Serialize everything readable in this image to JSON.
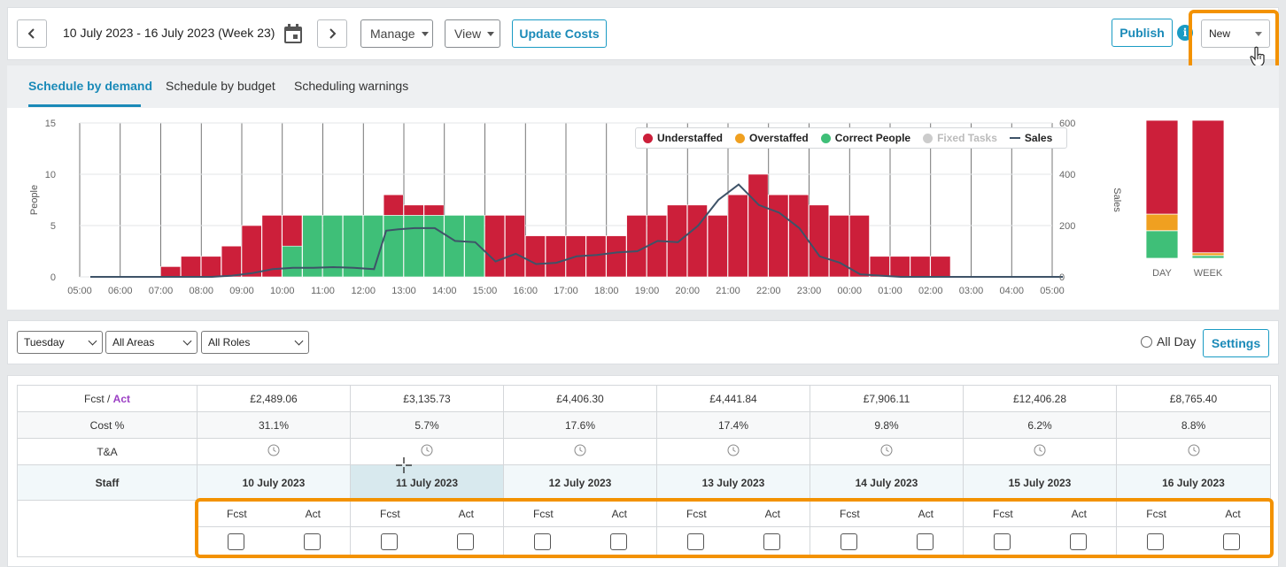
{
  "toolbar": {
    "date_range": "10 July 2023 - 16 July 2023 (Week 23)",
    "manage_label": "Manage",
    "view_label": "View",
    "update_costs_label": "Update Costs",
    "publish_label": "Publish",
    "info_glyph": "i",
    "template_select_value": "New",
    "prev_icon": "chevron-left-icon",
    "next_icon": "chevron-right-icon",
    "calendar_icon": "calendar-icon"
  },
  "tabs": [
    {
      "label": "Schedule by demand",
      "active": true
    },
    {
      "label": "Schedule by budget",
      "active": false
    },
    {
      "label": "Scheduling warnings",
      "active": false
    }
  ],
  "chart_data": [
    {
      "type": "bar",
      "stacked": true,
      "ylabel": "People",
      "y2label": "Sales",
      "ylim": [
        0,
        15
      ],
      "yticks": [
        "15",
        "10",
        "5",
        "0"
      ],
      "y2lim": [
        0,
        600
      ],
      "y2ticks": [
        "600",
        "400",
        "200",
        "0"
      ],
      "xticks": [
        "05:00",
        "06:00",
        "07:00",
        "08:00",
        "09:00",
        "10:00",
        "11:00",
        "12:00",
        "13:00",
        "14:00",
        "15:00",
        "16:00",
        "17:00",
        "18:00",
        "19:00",
        "20:00",
        "21:00",
        "22:00",
        "23:00",
        "00:00",
        "01:00",
        "02:00",
        "03:00",
        "04:00",
        "05:00"
      ],
      "legend": [
        {
          "name": "Understaffed",
          "color": "#cc1f3a"
        },
        {
          "name": "Overstaffed",
          "color": "#f0a020"
        },
        {
          "name": "Correct People",
          "color": "#3fbf78"
        },
        {
          "name": "Fixed Tasks",
          "color": "#cccccc",
          "muted": true
        },
        {
          "name": "Sales",
          "color": "#3e5368",
          "line": true
        }
      ],
      "legend_position": "top-right",
      "grid": true,
      "bar_slot_start_hour": 2,
      "bars": [
        {
          "red": 1,
          "green": 0
        },
        {
          "red": 2,
          "green": 0
        },
        {
          "red": 2,
          "green": 0
        },
        {
          "red": 3,
          "green": 0
        },
        {
          "red": 5,
          "green": 0
        },
        {
          "red": 6,
          "green": 0
        },
        {
          "red": 3,
          "green": 3
        },
        {
          "red": 0,
          "green": 6
        },
        {
          "red": 0,
          "green": 6
        },
        {
          "red": 0,
          "green": 6
        },
        {
          "red": 0,
          "green": 6
        },
        {
          "red": 2,
          "green": 6
        },
        {
          "red": 1,
          "green": 6
        },
        {
          "red": 1,
          "green": 6
        },
        {
          "red": 0,
          "green": 6
        },
        {
          "red": 0,
          "green": 6
        },
        {
          "red": 6,
          "green": 0
        },
        {
          "red": 6,
          "green": 0
        },
        {
          "red": 4,
          "green": 0
        },
        {
          "red": 4,
          "green": 0
        },
        {
          "red": 4,
          "green": 0
        },
        {
          "red": 4,
          "green": 0
        },
        {
          "red": 4,
          "green": 0
        },
        {
          "red": 6,
          "green": 0
        },
        {
          "red": 6,
          "green": 0
        },
        {
          "red": 7,
          "green": 0
        },
        {
          "red": 7,
          "green": 0
        },
        {
          "red": 6,
          "green": 0
        },
        {
          "red": 8,
          "green": 0
        },
        {
          "red": 10,
          "green": 0
        },
        {
          "red": 8,
          "green": 0
        },
        {
          "red": 8,
          "green": 0
        },
        {
          "red": 7,
          "green": 0
        },
        {
          "red": 6,
          "green": 0
        },
        {
          "red": 6,
          "green": 0
        },
        {
          "red": 2,
          "green": 0
        },
        {
          "red": 2,
          "green": 0
        },
        {
          "red": 2,
          "green": 0
        },
        {
          "red": 2,
          "green": 0
        },
        {
          "red": 0,
          "green": 0
        }
      ],
      "sales": [
        [
          0,
          0
        ],
        [
          1,
          0
        ],
        [
          2,
          0
        ],
        [
          3,
          0
        ],
        [
          3.5,
          5
        ],
        [
          4,
          15
        ],
        [
          4.5,
          30
        ],
        [
          5,
          35
        ],
        [
          5.5,
          35
        ],
        [
          6,
          38
        ],
        [
          6.5,
          35
        ],
        [
          7,
          30
        ],
        [
          7.3,
          180
        ],
        [
          7.6,
          185
        ],
        [
          8,
          190
        ],
        [
          8.5,
          190
        ],
        [
          9,
          140
        ],
        [
          9.5,
          135
        ],
        [
          10,
          60
        ],
        [
          10.5,
          90
        ],
        [
          11,
          50
        ],
        [
          11.5,
          55
        ],
        [
          12,
          80
        ],
        [
          12.5,
          85
        ],
        [
          13,
          95
        ],
        [
          13.5,
          100
        ],
        [
          14,
          140
        ],
        [
          14.5,
          135
        ],
        [
          15,
          200
        ],
        [
          15.5,
          300
        ],
        [
          16,
          360
        ],
        [
          16.5,
          280
        ],
        [
          17,
          250
        ],
        [
          17.5,
          190
        ],
        [
          18,
          80
        ],
        [
          18.5,
          55
        ],
        [
          19,
          10
        ],
        [
          19.5,
          5
        ],
        [
          20,
          0
        ],
        [
          21,
          0
        ],
        [
          22,
          0
        ],
        [
          23,
          0
        ],
        [
          24,
          0
        ]
      ]
    },
    {
      "type": "bar",
      "stacked": true,
      "categories": [
        "DAY",
        "WEEK"
      ],
      "ylim": [
        0,
        1
      ],
      "series": [
        {
          "name": "Understaffed",
          "color": "#cc1f3a",
          "values": [
            0.68,
            0.96
          ]
        },
        {
          "name": "Overstaffed",
          "color": "#f0a020",
          "values": [
            0.12,
            0.02
          ]
        },
        {
          "name": "Correct People",
          "color": "#3fbf78",
          "values": [
            0.2,
            0.02
          ]
        }
      ]
    }
  ],
  "filters": {
    "day": "Tuesday",
    "areas": "All Areas",
    "roles": "All Roles",
    "all_day_label": "All Day",
    "settings_label": "Settings"
  },
  "table": {
    "fcst_label": "Fcst / ",
    "act_label": "Act",
    "cost_pct_label": "Cost %",
    "ta_label": "T&A",
    "staff_label": "Staff",
    "sub_fcst": "Fcst",
    "sub_act": "Act",
    "days": [
      {
        "date": "10 July 2023",
        "fcst": "£2,489.06",
        "cost_pct": "31.1%"
      },
      {
        "date": "11 July 2023",
        "fcst": "£3,135.73",
        "cost_pct": "5.7%",
        "selected": true
      },
      {
        "date": "12 July 2023",
        "fcst": "£4,406.30",
        "cost_pct": "17.6%"
      },
      {
        "date": "13 July 2023",
        "fcst": "£4,441.84",
        "cost_pct": "17.4%"
      },
      {
        "date": "14 July 2023",
        "fcst": "£7,906.11",
        "cost_pct": "9.8%"
      },
      {
        "date": "15 July 2023",
        "fcst": "£12,406.28",
        "cost_pct": "6.2%"
      },
      {
        "date": "16 July 2023",
        "fcst": "£8,765.40",
        "cost_pct": "8.8%"
      }
    ]
  }
}
